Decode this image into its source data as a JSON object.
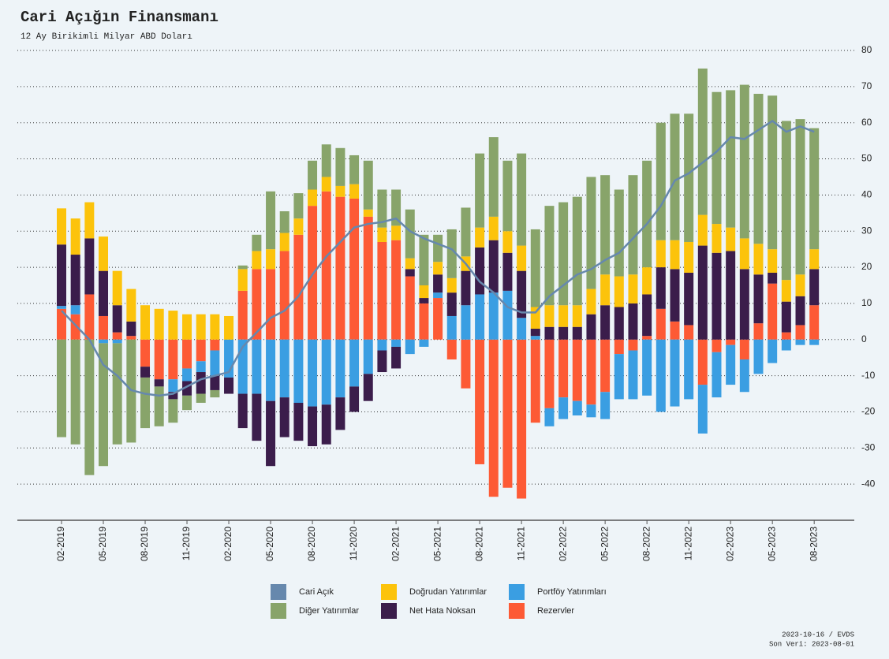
{
  "chart_data": {
    "type": "stacked_bar_line",
    "title": "Cari Açığın Finansmanı",
    "subtitle": "12 Ay Birikimli Milyar ABD Doları",
    "footer": [
      "2023-10-16 / EVDS",
      "Son Veri: 2023-08-01"
    ],
    "categories": [
      "02-2019",
      null,
      null,
      "05-2019",
      null,
      null,
      "08-2019",
      null,
      null,
      "11-2019",
      null,
      null,
      "02-2020",
      null,
      null,
      "05-2020",
      null,
      null,
      "08-2020",
      null,
      null,
      "11-2020",
      null,
      null,
      "02-2021",
      null,
      null,
      "05-2021",
      null,
      null,
      "08-2021",
      null,
      null,
      "11-2021",
      null,
      null,
      "02-2022",
      null,
      null,
      "05-2022",
      null,
      null,
      "08-2022",
      null,
      null,
      "11-2022",
      null,
      null,
      "02-2023",
      null,
      null,
      "05-2023",
      null,
      null,
      "08-2023"
    ],
    "ylim": [
      -50,
      80
    ],
    "yticks": [
      80,
      70,
      60,
      50,
      40,
      30,
      20,
      10,
      0,
      -10,
      -20,
      -30,
      -40
    ],
    "grid": true,
    "series": [
      {
        "name": "Cari Açık",
        "type": "line",
        "color": "#6688ad",
        "values": [
          8,
          4,
          0,
          -7,
          -10,
          -14,
          -15,
          -15.5,
          -15,
          -13,
          -11,
          -10,
          -9,
          -2,
          2,
          6,
          8,
          12,
          18,
          23,
          27,
          31,
          32,
          32.5,
          33.5,
          30,
          28,
          26.5,
          25,
          21,
          16,
          13,
          9,
          7.5,
          7.5,
          12,
          15,
          18,
          19.5,
          22,
          24,
          28,
          32,
          37,
          44,
          46,
          49,
          52,
          56,
          55.5,
          58,
          60.5,
          57.5,
          59,
          57.5
        ]
      },
      {
        "name": "Doğrudan Yatırımlar",
        "color": "#fcc30b",
        "values": [
          10,
          10,
          10,
          9.5,
          9.5,
          9,
          9.5,
          8.5,
          8,
          7,
          7,
          7,
          6.5,
          6,
          5,
          5.5,
          5,
          4.5,
          4.5,
          4,
          3,
          4,
          2,
          4,
          4,
          3,
          3.5,
          3.5,
          4,
          4,
          5.5,
          6.5,
          6,
          7,
          6,
          6,
          6,
          6,
          7,
          8.5,
          8.5,
          8,
          7.5,
          7.5,
          8,
          8.5,
          8.5,
          8,
          6.5,
          8.5,
          8.5,
          6.5,
          6,
          6,
          5.5
        ]
      },
      {
        "name": "Portföy Yatırımları",
        "color": "#3a9ee2",
        "values": [
          0.8,
          2.5,
          0,
          -1,
          -1,
          0,
          0,
          0,
          -3.5,
          -3.5,
          -3,
          -7,
          -10.5,
          -15,
          -15,
          -17,
          -16,
          -17.5,
          -18.5,
          -18,
          -16,
          -13,
          -9.5,
          -3,
          -2,
          -4,
          -2,
          1.5,
          6.5,
          9.5,
          12.5,
          13,
          13.5,
          6,
          1,
          -5,
          -6,
          -4,
          -3.5,
          -7.5,
          -12.5,
          -13.5,
          -15.5,
          -20,
          -18.5,
          -16.5,
          -13.5,
          -12.5,
          -11,
          -9,
          -9.5,
          -6.5,
          -3,
          -1.5,
          -1.5
        ]
      },
      {
        "name": "Diğer Yatırımlar",
        "color": "#88a46a",
        "values": [
          -27,
          -29,
          -37.5,
          -34,
          -28,
          -28.5,
          -14,
          -11,
          -6.5,
          -4,
          -2.5,
          -2,
          0,
          1,
          4.5,
          16,
          6,
          7,
          8,
          9,
          10.5,
          8,
          13.5,
          10.5,
          10,
          13.5,
          14,
          7.5,
          13.5,
          13.5,
          20.5,
          22,
          19.5,
          25.5,
          21.5,
          27.5,
          28.5,
          30,
          31,
          27.5,
          24,
          27.5,
          29.5,
          32.5,
          35,
          35.5,
          40.5,
          36.5,
          38,
          42.5,
          41.5,
          42.5,
          44,
          43,
          33.5
        ]
      },
      {
        "name": "Net Hata Noksan",
        "color": "#3b1d4b",
        "values": [
          17,
          14,
          15.5,
          12.5,
          7.5,
          4,
          -3,
          -2,
          -2,
          -4,
          -6,
          -4,
          -4.5,
          -9.5,
          -13,
          -18,
          -11,
          -10.5,
          -11,
          -11,
          -9,
          -7,
          -7.5,
          -6,
          -6,
          2,
          1.5,
          5,
          6.5,
          9.5,
          13,
          14.5,
          10.5,
          13,
          2,
          3.5,
          3.5,
          3.5,
          7,
          9.5,
          9,
          10,
          11.5,
          11.5,
          14.5,
          14.5,
          26,
          24,
          24.5,
          19.5,
          13.5,
          3,
          8.5,
          8,
          10
        ]
      },
      {
        "name": "Rezervler",
        "color": "#fd5a35",
        "values": [
          8.5,
          7,
          12.5,
          6.5,
          2,
          1,
          -7.5,
          -11,
          -11,
          -8,
          -6,
          -3,
          0,
          13.5,
          19.5,
          19.5,
          24.5,
          29,
          37,
          41,
          39.5,
          39,
          34,
          27,
          27.5,
          17.5,
          10,
          11.5,
          -5.5,
          -13.5,
          -34.5,
          -43.5,
          -41,
          -44,
          -23,
          -19,
          -16,
          -17,
          -18,
          -14.5,
          -4,
          -3,
          1,
          8.5,
          5,
          4,
          -12.5,
          -3.5,
          -1.5,
          -5.5,
          4.5,
          15.5,
          2,
          4,
          9.5
        ]
      }
    ]
  }
}
